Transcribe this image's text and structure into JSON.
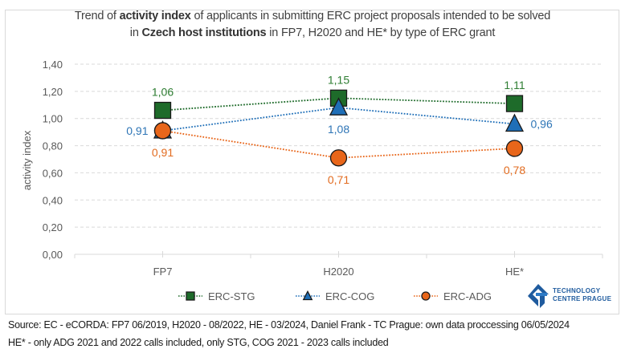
{
  "title": {
    "line1_pre": "Trend of ",
    "line1_bold": "activity index",
    "line1_post": " of applicants in submitting ERC project proposals intended to be solved",
    "line2_pre": "in ",
    "line2_bold": "Czech host institutions",
    "line2_post": " in FP7, H2020 and HE* by type of ERC grant"
  },
  "chart_data": {
    "type": "line",
    "title": "Trend of activity index of applicants in submitting ERC project proposals intended to be solved in Czech host institutions in FP7, H2020 and HE* by type of ERC grant",
    "xlabel": "",
    "ylabel": "activity index",
    "categories": [
      "FP7",
      "H2020",
      "HE*"
    ],
    "ylim": [
      0,
      1.4
    ],
    "yticks": [
      0,
      0.2,
      0.4,
      0.6,
      0.8,
      1.0,
      1.2,
      1.4
    ],
    "ytick_labels": [
      "0,00",
      "0,20",
      "0,40",
      "0,60",
      "0,80",
      "1,00",
      "1,20",
      "1,40"
    ],
    "grid": true,
    "legend_position": "bottom",
    "series": [
      {
        "name": "ERC-STG",
        "marker": "square",
        "color": "#1e6b2a",
        "label_color": "#2e7d32",
        "values": [
          1.06,
          1.15,
          1.11
        ],
        "labels": [
          "1,06",
          "1,15",
          "1,11"
        ],
        "label_positions": [
          "above",
          "above",
          "above"
        ]
      },
      {
        "name": "ERC-COG",
        "marker": "triangle",
        "color": "#1f6fb8",
        "label_color": "#2e75b6",
        "values": [
          0.91,
          1.08,
          0.96
        ],
        "labels": [
          "0,91",
          "1,08",
          "0,96"
        ],
        "label_positions": [
          "left",
          "below",
          "right"
        ]
      },
      {
        "name": "ERC-ADG",
        "marker": "circle",
        "color": "#e8661a",
        "label_color": "#e26b1f",
        "values": [
          0.91,
          0.71,
          0.78
        ],
        "labels": [
          "0,91",
          "0,71",
          "0,78"
        ],
        "label_positions": [
          "below",
          "below",
          "below"
        ]
      }
    ]
  },
  "logo": {
    "line1": "TECHNOLOGY",
    "line2": "CENTRE PRAGUE",
    "color": "#1f5b9e"
  },
  "footer": {
    "source": "Source: EC - eCORDA: FP7 06/2019, H2020 - 08/2022, HE - 03/2024, Daniel Frank - TC Prague: own data proccessing 06/05/2024",
    "note": "HE* - only ADG 2021 and 2022 calls included, only STG, COG 2021 - 2023 calls included"
  }
}
